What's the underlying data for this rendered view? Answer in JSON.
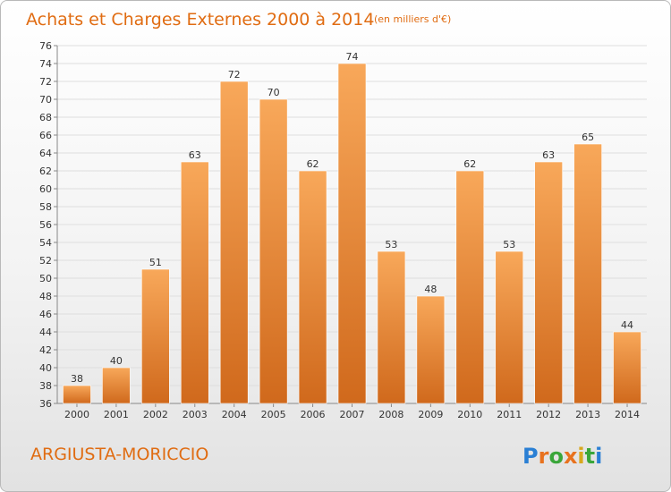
{
  "title": "Achats et Charges Externes 2000 à 2014",
  "subtitle": "(en milliers d'€)",
  "commune": "ARGIUSTA-MORICCIO",
  "brand": {
    "letters": [
      "P",
      "r",
      "o",
      "x",
      "i",
      "t",
      "i"
    ],
    "colors": [
      "#2a7fd4",
      "#e8721e",
      "#3aa63a",
      "#e8721e",
      "#d8a81e",
      "#3aa63a",
      "#2a7fd4"
    ]
  },
  "colors": {
    "bar_light": "#f8a85a",
    "bar_dark": "#d0691c",
    "title": "#e06c12",
    "grid": "#dedede"
  },
  "chart_data": {
    "type": "bar",
    "title": "Achats et Charges Externes 2000 à 2014",
    "subtitle": "(en milliers d'€)",
    "xlabel": "",
    "ylabel": "",
    "categories": [
      "2000",
      "2001",
      "2002",
      "2003",
      "2004",
      "2005",
      "2006",
      "2007",
      "2008",
      "2009",
      "2010",
      "2011",
      "2012",
      "2013",
      "2014"
    ],
    "values": [
      38,
      40,
      51,
      63,
      72,
      70,
      62,
      74,
      53,
      48,
      62,
      53,
      63,
      65,
      44
    ],
    "ylim": [
      36,
      76
    ],
    "yticks": [
      36,
      38,
      40,
      42,
      44,
      46,
      48,
      50,
      52,
      54,
      56,
      58,
      60,
      62,
      64,
      66,
      68,
      70,
      72,
      74,
      76
    ],
    "grid": true,
    "legend": "none"
  }
}
